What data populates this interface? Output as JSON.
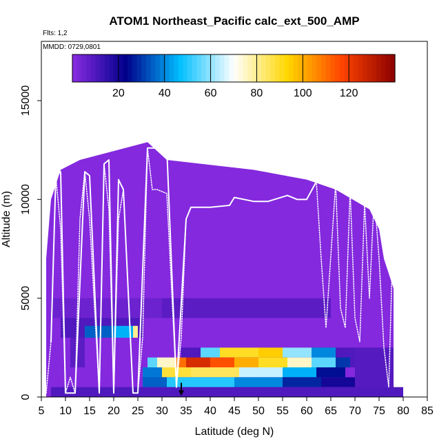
{
  "chart_data": {
    "type": "heatmap",
    "title": "ATOM1 Northeast_Pacific calc_ext_500_AMP",
    "flights_label": "Flts: 1,2",
    "dates_label": "MMDD: 0729,0801",
    "xlabel": "Latitude (deg N)",
    "ylabel": "Altitude (m)",
    "xlim": [
      5,
      85
    ],
    "ylim": [
      0,
      18000
    ],
    "x_ticks": [
      5,
      10,
      15,
      20,
      25,
      30,
      35,
      40,
      45,
      50,
      55,
      60,
      65,
      70,
      75,
      80,
      85
    ],
    "y_ticks": [
      0,
      5000,
      10000,
      15000
    ],
    "colorbar": {
      "range": [
        0,
        140
      ],
      "ticks": [
        20,
        40,
        60,
        80,
        100,
        120
      ],
      "colors": [
        "#8a2be2",
        "#00008b",
        "#00bfff",
        "#ffffff",
        "#ffd700",
        "#ff4500",
        "#8b0000"
      ]
    },
    "top_envelope": [
      [
        6,
        7000
      ],
      [
        7,
        10000
      ],
      [
        9,
        11500
      ],
      [
        13,
        12000
      ],
      [
        27,
        12900
      ],
      [
        31,
        12000
      ],
      [
        49,
        11500
      ],
      [
        60,
        11000
      ],
      [
        66,
        10500
      ],
      [
        73,
        9500
      ],
      [
        75,
        8500
      ],
      [
        76,
        7000
      ],
      [
        78,
        5500
      ]
    ],
    "cells": [
      {
        "lat": [
          7,
          35
        ],
        "alt": [
          4000,
          5000
        ],
        "value": 5
      },
      {
        "lat": [
          30,
          65
        ],
        "alt": [
          4000,
          5000
        ],
        "value": 8
      },
      {
        "lat": [
          9,
          26
        ],
        "alt": [
          3000,
          4000
        ],
        "value": 10
      },
      {
        "lat": [
          14,
          20
        ],
        "alt": [
          3000,
          3600
        ],
        "value": 35
      },
      {
        "lat": [
          20,
          24
        ],
        "alt": [
          3000,
          3600
        ],
        "value": 45
      },
      {
        "lat": [
          24,
          25
        ],
        "alt": [
          3000,
          3600
        ],
        "value": 80
      },
      {
        "lat": [
          11,
          14
        ],
        "alt": [
          1500,
          3000
        ],
        "value": 8
      },
      {
        "lat": [
          34,
          70
        ],
        "alt": [
          1500,
          2500
        ],
        "value": 10
      },
      {
        "lat": [
          38,
          42
        ],
        "alt": [
          2000,
          2500
        ],
        "value": 55
      },
      {
        "lat": [
          42,
          50
        ],
        "alt": [
          2000,
          2500
        ],
        "value": 90
      },
      {
        "lat": [
          50,
          55
        ],
        "alt": [
          2000,
          2500
        ],
        "value": 95
      },
      {
        "lat": [
          55,
          61
        ],
        "alt": [
          2000,
          2500
        ],
        "value": 60
      },
      {
        "lat": [
          61,
          66
        ],
        "alt": [
          2000,
          2500
        ],
        "value": 40
      },
      {
        "lat": [
          27,
          29
        ],
        "alt": [
          1500,
          2000
        ],
        "value": 55
      },
      {
        "lat": [
          29,
          33
        ],
        "alt": [
          1500,
          2000
        ],
        "value": 75
      },
      {
        "lat": [
          33,
          35
        ],
        "alt": [
          1500,
          2000
        ],
        "value": 110
      },
      {
        "lat": [
          35,
          40
        ],
        "alt": [
          1500,
          2000
        ],
        "value": 125
      },
      {
        "lat": [
          40,
          45
        ],
        "alt": [
          1500,
          2000
        ],
        "value": 115
      },
      {
        "lat": [
          45,
          50
        ],
        "alt": [
          1500,
          2000
        ],
        "value": 100
      },
      {
        "lat": [
          50,
          56
        ],
        "alt": [
          1500,
          2000
        ],
        "value": 90
      },
      {
        "lat": [
          56,
          61
        ],
        "alt": [
          1500,
          2000
        ],
        "value": 75
      },
      {
        "lat": [
          61,
          66
        ],
        "alt": [
          1500,
          2000
        ],
        "value": 55
      },
      {
        "lat": [
          66,
          69
        ],
        "alt": [
          1500,
          2000
        ],
        "value": 30
      },
      {
        "lat": [
          26,
          30
        ],
        "alt": [
          1000,
          1500
        ],
        "value": 38
      },
      {
        "lat": [
          30,
          36
        ],
        "alt": [
          1000,
          1500
        ],
        "value": 88
      },
      {
        "lat": [
          36,
          46
        ],
        "alt": [
          1000,
          1500
        ],
        "value": 85
      },
      {
        "lat": [
          46,
          55
        ],
        "alt": [
          1000,
          1500
        ],
        "value": 65
      },
      {
        "lat": [
          55,
          62
        ],
        "alt": [
          1000,
          1500
        ],
        "value": 45
      },
      {
        "lat": [
          62,
          68
        ],
        "alt": [
          1000,
          1500
        ],
        "value": 25
      },
      {
        "lat": [
          26,
          31
        ],
        "alt": [
          500,
          1000
        ],
        "value": 35
      },
      {
        "lat": [
          31,
          45
        ],
        "alt": [
          500,
          1000
        ],
        "value": 50
      },
      {
        "lat": [
          45,
          55
        ],
        "alt": [
          500,
          1000
        ],
        "value": 40
      },
      {
        "lat": [
          55,
          63
        ],
        "alt": [
          500,
          1000
        ],
        "value": 28
      },
      {
        "lat": [
          63,
          70
        ],
        "alt": [
          500,
          1000
        ],
        "value": 20
      },
      {
        "lat": [
          7,
          80
        ],
        "alt": [
          0,
          500
        ],
        "value": 10
      },
      {
        "lat": [
          70,
          78
        ],
        "alt": [
          500,
          2500
        ],
        "value": 9
      }
    ],
    "flight_tracks": [
      {
        "style": "line",
        "points": [
          [
            7,
            2800
          ],
          [
            8,
            11200
          ],
          [
            9,
            11400
          ],
          [
            10,
            200
          ],
          [
            12,
            200
          ],
          [
            14,
            11400
          ],
          [
            15,
            11200
          ],
          [
            17,
            200
          ],
          [
            18,
            11800
          ],
          [
            19,
            12000
          ],
          [
            20,
            200
          ],
          [
            21,
            11000
          ],
          [
            22,
            10500
          ],
          [
            24,
            200
          ],
          [
            25,
            200
          ],
          [
            27,
            12600
          ],
          [
            31,
            12600
          ],
          [
            33,
            500
          ],
          [
            35,
            9000
          ]
        ]
      },
      {
        "style": "dotted",
        "points": [
          [
            6,
            200
          ],
          [
            7,
            2800
          ],
          [
            8,
            11200
          ],
          [
            9,
            8500
          ],
          [
            10,
            200
          ],
          [
            11,
            1000
          ],
          [
            12,
            200
          ],
          [
            13,
            9000
          ],
          [
            14,
            11400
          ],
          [
            15,
            9000
          ],
          [
            17,
            200
          ],
          [
            18,
            11800
          ],
          [
            19,
            9500
          ],
          [
            20,
            200
          ],
          [
            21,
            9000
          ],
          [
            22,
            10500
          ],
          [
            24,
            200
          ],
          [
            25,
            200
          ],
          [
            26,
            3000
          ],
          [
            27,
            12600
          ],
          [
            28,
            10500
          ],
          [
            29,
            10500
          ],
          [
            31,
            10300
          ],
          [
            33,
            500
          ],
          [
            34,
            3000
          ],
          [
            35,
            9000
          ]
        ]
      },
      {
        "style": "line",
        "points": [
          [
            35,
            9000
          ],
          [
            36,
            9600
          ],
          [
            40,
            9600
          ],
          [
            44,
            9700
          ],
          [
            45,
            10100
          ],
          [
            49,
            9900
          ],
          [
            52,
            9900
          ],
          [
            56,
            10200
          ],
          [
            58,
            10000
          ],
          [
            60,
            10000
          ],
          [
            62,
            10900
          ],
          [
            66,
            10800
          ],
          [
            69,
            10500
          ],
          [
            72,
            9800
          ],
          [
            73,
            9600
          ],
          [
            74,
            10200
          ],
          [
            76,
            9600
          ],
          [
            77,
            9200
          ]
        ]
      },
      {
        "style": "dotted",
        "points": [
          [
            62,
            10900
          ],
          [
            63,
            7000
          ],
          [
            64,
            3500
          ],
          [
            66,
            10800
          ],
          [
            67,
            4500
          ],
          [
            68,
            3500
          ],
          [
            69,
            10500
          ],
          [
            70,
            4000
          ],
          [
            71,
            2800
          ],
          [
            72,
            9800
          ],
          [
            73,
            5000
          ],
          [
            74,
            10200
          ],
          [
            75,
            7000
          ],
          [
            76,
            2500
          ],
          [
            77,
            500
          ],
          [
            78,
            9000
          ],
          [
            79,
            4000
          ]
        ]
      }
    ],
    "marker": {
      "lat": 34,
      "alt": 300,
      "symbol": "arrow-down"
    }
  }
}
